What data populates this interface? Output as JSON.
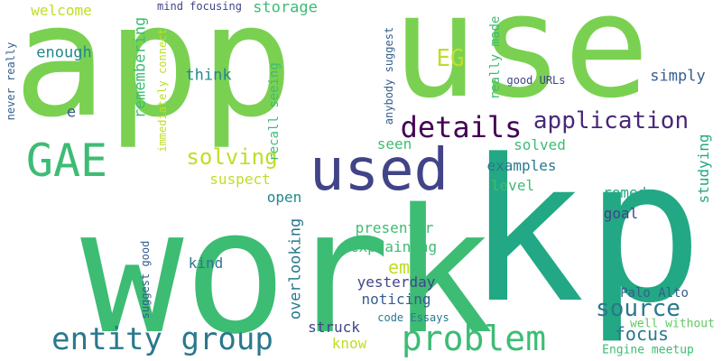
{
  "palette": {
    "background": "#ffffff",
    "lime": "#7ad151",
    "green": "#3dbc74",
    "teal_green": "#22a884",
    "teal": "#23888e",
    "blue": "#2a788e",
    "steel_blue": "#355f8d",
    "indigo": "#414487",
    "purple": "#482878",
    "dark_purple": "#440154",
    "yellow": "#bddf26",
    "light_green": "#5ec962"
  },
  "words": [
    {
      "id": "app",
      "text": "app",
      "color": "#7ad151"
    },
    {
      "id": "use",
      "text": "use",
      "color": "#7ad151"
    },
    {
      "id": "work",
      "text": "work",
      "color": "#3dbc74"
    },
    {
      "id": "kp",
      "text": "kp",
      "color": "#22a884"
    },
    {
      "id": "used",
      "text": "used",
      "color": "#414487"
    },
    {
      "id": "gae",
      "text": "GAE",
      "color": "#3dbc74"
    },
    {
      "id": "details",
      "text": "details",
      "color": "#440154"
    },
    {
      "id": "application",
      "text": "application",
      "color": "#482878"
    },
    {
      "id": "problem",
      "text": "problem",
      "color": "#3dbc74"
    },
    {
      "id": "entity_group",
      "text": "entity group",
      "color": "#2a788e"
    },
    {
      "id": "source",
      "text": "source",
      "color": "#2a788e"
    },
    {
      "id": "solving",
      "text": "solving",
      "color": "#bddf26"
    },
    {
      "id": "focus",
      "text": "focus",
      "color": "#2a788e"
    },
    {
      "id": "eg",
      "text": "EG",
      "color": "#bddf26"
    },
    {
      "id": "em",
      "text": "em",
      "color": "#bddf26"
    },
    {
      "id": "welcome",
      "text": "welcome",
      "color": "#bddf26"
    },
    {
      "id": "storage",
      "text": "storage",
      "color": "#3dbc74"
    },
    {
      "id": "mind_focusing",
      "text": "mind focusing",
      "color": "#414487"
    },
    {
      "id": "enough",
      "text": "enough",
      "color": "#23888e"
    },
    {
      "id": "think",
      "text": "think",
      "color": "#23888e"
    },
    {
      "id": "simply",
      "text": "simply",
      "color": "#355f8d"
    },
    {
      "id": "e",
      "text": "e",
      "color": "#355f8d"
    },
    {
      "id": "suspect",
      "text": "suspect",
      "color": "#bddf26"
    },
    {
      "id": "seen",
      "text": "seen",
      "color": "#3dbc74"
    },
    {
      "id": "solved",
      "text": "solved",
      "color": "#3dbc74"
    },
    {
      "id": "examples",
      "text": "examples",
      "color": "#2a788e"
    },
    {
      "id": "level",
      "text": "level",
      "color": "#3dbc74"
    },
    {
      "id": "open",
      "text": "open",
      "color": "#23888e"
    },
    {
      "id": "remedy",
      "text": "remedy",
      "color": "#22a884"
    },
    {
      "id": "goal",
      "text": "goal",
      "color": "#414487"
    },
    {
      "id": "presenter",
      "text": "presenter",
      "color": "#3dbc74"
    },
    {
      "id": "explaining",
      "text": "explaining",
      "color": "#3dbc74"
    },
    {
      "id": "kind",
      "text": "kind",
      "color": "#2a788e"
    },
    {
      "id": "yesterday",
      "text": "yesterday",
      "color": "#414487"
    },
    {
      "id": "noticing",
      "text": "noticing",
      "color": "#355f8d"
    },
    {
      "id": "struck",
      "text": "struck",
      "color": "#414487"
    },
    {
      "id": "know",
      "text": "know",
      "color": "#bddf26"
    },
    {
      "id": "code_essays",
      "text": "code Essays",
      "color": "#2a788e"
    },
    {
      "id": "palo_alto",
      "text": "Palo Alto",
      "color": "#355f8d"
    },
    {
      "id": "well_without",
      "text": "well without",
      "color": "#5ec962"
    },
    {
      "id": "engine_meetup",
      "text": "Engine meetup",
      "color": "#3dbc74"
    },
    {
      "id": "good_urls",
      "text": "good URLs",
      "color": "#414487"
    },
    {
      "id": "never_really",
      "text": "never really",
      "color": "#355f8d"
    },
    {
      "id": "remembering",
      "text": "remembering",
      "color": "#3dbc74"
    },
    {
      "id": "immediately_connect",
      "text": "immediately connect",
      "color": "#bddf26"
    },
    {
      "id": "recall_seeing",
      "text": "recall seeing",
      "color": "#3dbc74"
    },
    {
      "id": "anybody_suggest",
      "text": "anybody suggest",
      "color": "#355f8d"
    },
    {
      "id": "really_made",
      "text": "really made",
      "color": "#3dbc74"
    },
    {
      "id": "studying",
      "text": "studying",
      "color": "#22a884"
    },
    {
      "id": "suggest_good",
      "text": "suggest good",
      "color": "#355f8d"
    },
    {
      "id": "overlooking",
      "text": "overlooking",
      "color": "#2a788e"
    }
  ]
}
